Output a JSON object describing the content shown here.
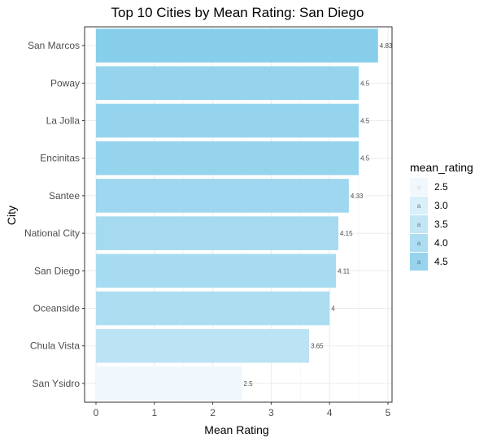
{
  "chart_data": {
    "type": "bar",
    "orientation": "horizontal",
    "title": "Top 10 Cities by Mean Rating: San Diego",
    "xlabel": "Mean Rating",
    "ylabel": "City",
    "xlim": [
      0,
      5
    ],
    "x_ticks": [
      0,
      1,
      2,
      3,
      4,
      5
    ],
    "grid": true,
    "legend_position": "right",
    "categories": [
      "San Marcos",
      "Poway",
      "La Jolla",
      "Encinitas",
      "Santee",
      "National City",
      "San Diego",
      "Oceanside",
      "Chula Vista",
      "San Ysidro"
    ],
    "values": [
      4.83,
      4.5,
      4.5,
      4.5,
      4.33,
      4.15,
      4.11,
      4,
      3.65,
      2.5
    ],
    "value_labels": [
      "4.83",
      "4.5",
      "4.5",
      "4.5",
      "4.33",
      "4.15",
      "4.11",
      "4",
      "3.65",
      "2.5"
    ],
    "legend": {
      "title": "mean_rating",
      "entries": [
        "2.5",
        "3.0",
        "3.5",
        "4.0",
        "4.5"
      ],
      "values": [
        2.5,
        3.0,
        3.5,
        4.0,
        4.5
      ],
      "key_glyph": "a"
    },
    "color_scale": {
      "low": "#f0f8fd",
      "high": "#87ceeb"
    }
  }
}
